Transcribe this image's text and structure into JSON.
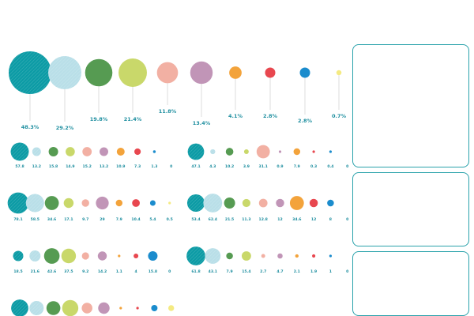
{
  "colors": {
    "series": [
      "#0c9ba5",
      "#b9dfe8",
      "#569b52",
      "#c9d86a",
      "#f2b0a3",
      "#c195b7",
      "#f3a33b",
      "#e8474f",
      "#1b8ccd",
      "#f4ea82"
    ],
    "label": "#1f8fa0",
    "panel_border": "#2aa2ab"
  },
  "chart_data": {
    "type": "bubble",
    "top_row": {
      "values": [
        48.3,
        29.2,
        19.8,
        21.4,
        11.8,
        13.4,
        4.1,
        2.8,
        2.8,
        0.7
      ],
      "labels": [
        "48.3%",
        "29.2%",
        "19.8%",
        "21.4%",
        "11.8%",
        "13.4%",
        "4.1%",
        "2.8%",
        "2.8%",
        "0.7%"
      ]
    },
    "groups": [
      {
        "values": [
          57.8,
          13.2,
          15.8,
          14.9,
          15.2,
          13.2,
          10.9,
          7.3,
          1.3,
          0
        ],
        "labels": [
          "57.8",
          "13.2",
          "15.8",
          "14.9",
          "15.2",
          "13.2",
          "10.9",
          "7.3",
          "1.3",
          "0"
        ]
      },
      {
        "values": [
          47.1,
          4.3,
          10.2,
          3.9,
          31.1,
          0.9,
          7.9,
          0.3,
          0.4,
          0
        ],
        "labels": [
          "47.1",
          "4.3",
          "10.2",
          "3.9",
          "31.1",
          "0.9",
          "7.9",
          "0.3",
          "0.4",
          "0"
        ]
      },
      {
        "values": [
          78.1,
          58.5,
          34.6,
          17.1,
          9.7,
          29,
          7.9,
          10.4,
          5.4,
          0.5
        ],
        "labels": [
          "78.1",
          "58.5",
          "34.6",
          "17.1",
          "9.7",
          "29",
          "7.9",
          "10.4",
          "5.4",
          "0.5"
        ]
      },
      {
        "values": [
          53.4,
          62.4,
          21.5,
          11.3,
          12.8,
          12,
          34.6,
          12,
          8,
          0
        ],
        "labels": [
          "53.4",
          "62.4",
          "21.5",
          "11.3",
          "12.8",
          "12",
          "34.6",
          "12",
          "8",
          "0"
        ]
      },
      {
        "values": [
          18.5,
          21.6,
          42.6,
          37.5,
          9.2,
          14.2,
          1.1,
          4,
          15.8,
          0
        ],
        "labels": [
          "18.5",
          "21.6",
          "42.6",
          "37.5",
          "9.2",
          "14.2",
          "1.1",
          "4",
          "15.8",
          "0"
        ]
      },
      {
        "values": [
          61.8,
          43.1,
          7.9,
          15.4,
          2.7,
          4.7,
          2.1,
          1.9,
          1,
          0
        ],
        "labels": [
          "61.8",
          "43.1",
          "7.9",
          "15.4",
          "2.7",
          "4.7",
          "2.1",
          "1.9",
          "1",
          "0"
        ]
      },
      {
        "values": [
          52,
          36,
          34,
          46,
          20,
          23,
          1,
          1,
          7,
          6
        ],
        "labels": [
          "",
          "",
          "",
          "",
          "",
          "",
          "",
          "",
          "",
          ""
        ]
      }
    ]
  }
}
